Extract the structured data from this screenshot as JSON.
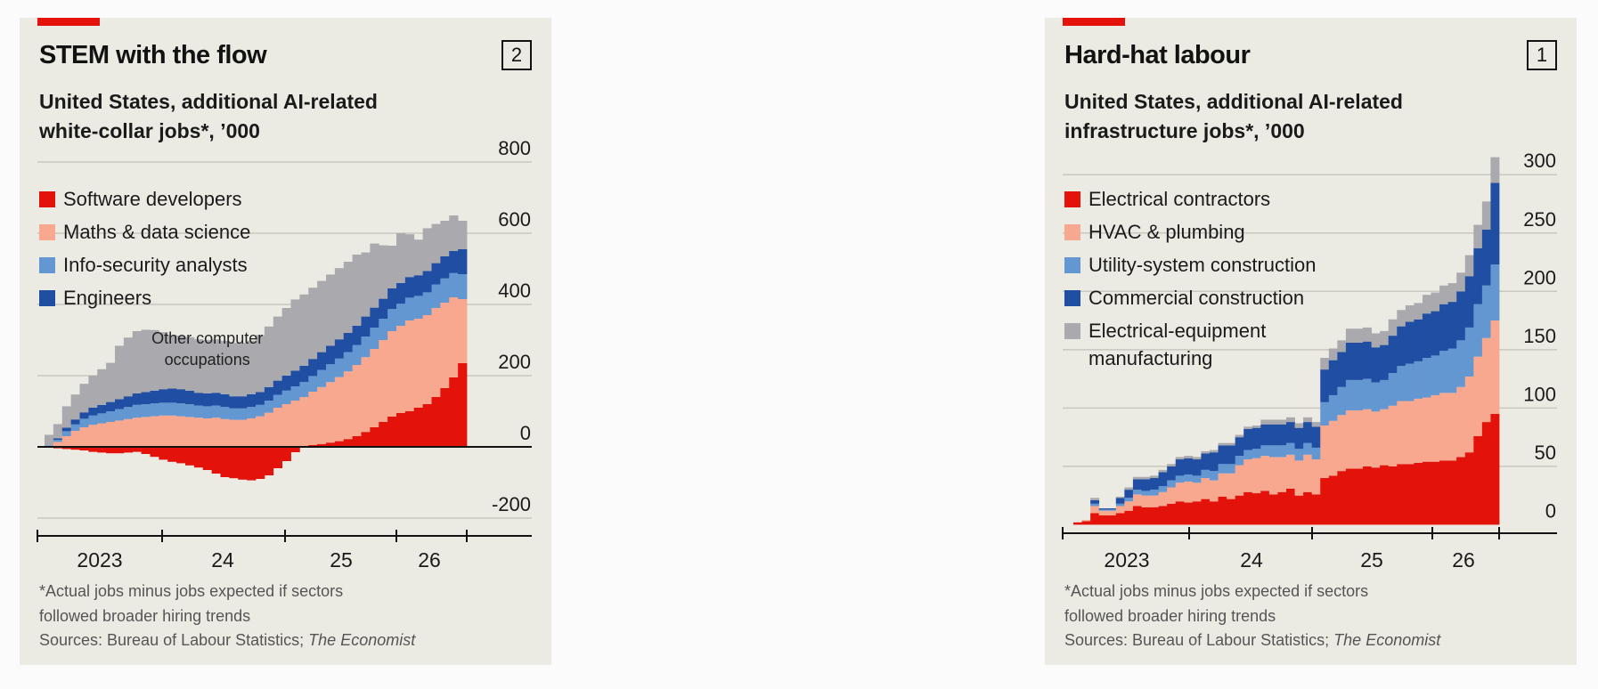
{
  "chart_data": [
    {
      "type": "area",
      "number_badge": "2",
      "title": "STEM with the flow",
      "subtitle_lines": [
        "United States, additional AI-related",
        "white-collar jobs*, ’000"
      ],
      "footnote_lines": [
        "*Actual jobs minus jobs expected if sectors",
        "followed broader hiring trends"
      ],
      "source_prefix": "Sources: Bureau of Labour Statistics; ",
      "source_italic": "The Economist",
      "yticks": [
        800,
        600,
        400,
        200,
        0,
        -200
      ],
      "ytick_labels": [
        "800",
        "600",
        "400",
        "200",
        "0",
        "-200"
      ],
      "ylim": [
        -200,
        800
      ],
      "xtick_labels": [
        "2023",
        "24",
        "25",
        "26"
      ],
      "x_start": "2022-10",
      "annotations": [
        {
          "text_lines": [
            "Other computer",
            "occupations"
          ],
          "x_index": 18,
          "y": 290
        }
      ],
      "legend": [
        "Software developers",
        "Maths & data science",
        "Info-security analysts",
        "Engineers"
      ],
      "series": [
        {
          "name": "Software developers",
          "color": "#e3120b",
          "values": [
            -2,
            -4,
            -6,
            -8,
            -10,
            -14,
            -16,
            -18,
            -18,
            -16,
            -14,
            -20,
            -28,
            -36,
            -42,
            -46,
            -52,
            -58,
            -65,
            -75,
            -85,
            -88,
            -92,
            -94,
            -90,
            -80,
            -60,
            -40,
            -15,
            0,
            5,
            8,
            12,
            16,
            22,
            30,
            42,
            55,
            70,
            85,
            95,
            100,
            110,
            120,
            140,
            165,
            195,
            235
          ]
        },
        {
          "name": "Maths & data science",
          "color": "#f7a88e",
          "values": [
            2,
            14,
            30,
            45,
            55,
            62,
            66,
            70,
            74,
            78,
            82,
            84,
            86,
            88,
            88,
            86,
            84,
            82,
            80,
            82,
            78,
            76,
            76,
            80,
            86,
            96,
            110,
            120,
            130,
            140,
            150,
            160,
            170,
            180,
            190,
            200,
            210,
            220,
            230,
            240,
            245,
            255,
            250,
            250,
            250,
            240,
            225,
            180
          ]
        },
        {
          "name": "Info-security analysts",
          "color": "#6397d1",
          "values": [
            2,
            6,
            14,
            18,
            24,
            26,
            28,
            30,
            32,
            34,
            36,
            36,
            36,
            36,
            36,
            36,
            36,
            34,
            34,
            34,
            34,
            32,
            32,
            32,
            32,
            34,
            36,
            38,
            40,
            42,
            44,
            48,
            50,
            52,
            54,
            56,
            58,
            60,
            60,
            62,
            62,
            64,
            64,
            64,
            66,
            68,
            68,
            70
          ]
        },
        {
          "name": "Engineers",
          "color": "#1f4ea3",
          "values": [
            0,
            4,
            10,
            14,
            18,
            22,
            24,
            26,
            28,
            30,
            32,
            34,
            36,
            38,
            40,
            40,
            38,
            36,
            36,
            36,
            36,
            34,
            34,
            36,
            36,
            38,
            40,
            42,
            44,
            46,
            48,
            50,
            52,
            54,
            54,
            54,
            56,
            56,
            56,
            58,
            58,
            58,
            58,
            60,
            60,
            62,
            62,
            70
          ]
        },
        {
          "name": "Other computer occupations",
          "color": "#a9a9ae",
          "values": [
            30,
            40,
            60,
            70,
            80,
            90,
            100,
            110,
            150,
            165,
            175,
            175,
            170,
            160,
            150,
            150,
            150,
            150,
            150,
            150,
            150,
            150,
            150,
            150,
            160,
            170,
            180,
            190,
            200,
            200,
            200,
            200,
            200,
            200,
            200,
            200,
            180,
            180,
            150,
            120,
            140,
            120,
            100,
            120,
            110,
            100,
            100,
            80
          ]
        }
      ]
    },
    {
      "type": "area",
      "number_badge": "1",
      "title": "Hard-hat labour",
      "subtitle_lines": [
        "United States, additional AI-related",
        "infrastructure jobs*, ’000"
      ],
      "footnote_lines": [
        "*Actual jobs minus jobs expected if sectors",
        "followed broader hiring trends"
      ],
      "source_prefix": "Sources: Bureau of Labour Statistics; ",
      "source_italic": "The Economist",
      "yticks": [
        300,
        250,
        200,
        150,
        100,
        50,
        0
      ],
      "ytick_labels": [
        "300",
        "250",
        "200",
        "150",
        "100",
        "50",
        "0"
      ],
      "ylim": [
        -5,
        320
      ],
      "xtick_labels": [
        "2023",
        "24",
        "25",
        "26"
      ],
      "x_start": "2022-10",
      "legend": [
        "Electrical contractors",
        "HVAC & plumbing",
        "Utility-system construction",
        "Commercial construction",
        "Electrical-equipment manufacturing"
      ],
      "legend_lines": [
        [
          "Electrical contractors"
        ],
        [
          "HVAC & plumbing"
        ],
        [
          "Utility-system construction"
        ],
        [
          "Commercial construction"
        ],
        [
          "Electrical-equipment",
          "manufacturing"
        ]
      ],
      "series": [
        {
          "name": "Electrical contractors",
          "color": "#e3120b",
          "values": [
            2,
            3,
            10,
            8,
            8,
            10,
            12,
            16,
            15,
            15,
            16,
            18,
            20,
            19,
            20,
            22,
            20,
            24,
            22,
            25,
            28,
            27,
            29,
            26,
            28,
            31,
            25,
            28,
            26,
            40,
            42,
            46,
            48,
            48,
            50,
            49,
            51,
            50,
            52,
            52,
            53,
            54,
            54,
            55,
            55,
            58,
            62,
            76,
            88,
            95
          ]
        },
        {
          "name": "HVAC & plumbing",
          "color": "#f7a88e",
          "values": [
            0,
            1,
            6,
            4,
            4,
            6,
            8,
            10,
            10,
            10,
            12,
            14,
            16,
            18,
            16,
            18,
            18,
            20,
            22,
            26,
            28,
            30,
            30,
            32,
            30,
            29,
            30,
            32,
            30,
            45,
            47,
            48,
            50,
            50,
            49,
            48,
            48,
            52,
            54,
            54,
            55,
            55,
            57,
            58,
            58,
            60,
            65,
            68,
            72,
            80
          ]
        },
        {
          "name": "Utility-system construction",
          "color": "#6397d1",
          "values": [
            0,
            0,
            2,
            1,
            1,
            2,
            3,
            4,
            4,
            5,
            5,
            6,
            6,
            6,
            6,
            7,
            8,
            8,
            8,
            8,
            8,
            8,
            9,
            10,
            10,
            10,
            10,
            10,
            10,
            20,
            22,
            24,
            26,
            26,
            26,
            25,
            25,
            28,
            30,
            32,
            32,
            34,
            34,
            36,
            38,
            40,
            42,
            45,
            45,
            48
          ]
        },
        {
          "name": "Commercial construction",
          "color": "#1f4ea3",
          "values": [
            0,
            0,
            3,
            1,
            1,
            5,
            7,
            9,
            10,
            10,
            12,
            12,
            14,
            14,
            14,
            14,
            16,
            16,
            16,
            16,
            18,
            18,
            18,
            18,
            18,
            18,
            18,
            18,
            18,
            28,
            30,
            30,
            32,
            32,
            32,
            30,
            30,
            32,
            34,
            36,
            36,
            38,
            38,
            40,
            40,
            42,
            44,
            48,
            48,
            70
          ]
        },
        {
          "name": "Electrical-equipment manufacturing",
          "color": "#a9a9ae",
          "values": [
            0,
            0,
            2,
            0,
            0,
            1,
            2,
            2,
            2,
            2,
            2,
            2,
            2,
            2,
            2,
            2,
            2,
            2,
            2,
            2,
            2,
            2,
            4,
            4,
            4,
            4,
            4,
            4,
            4,
            10,
            10,
            10,
            12,
            12,
            12,
            12,
            12,
            14,
            14,
            14,
            14,
            16,
            16,
            16,
            16,
            16,
            18,
            20,
            24,
            22
          ]
        }
      ]
    }
  ]
}
